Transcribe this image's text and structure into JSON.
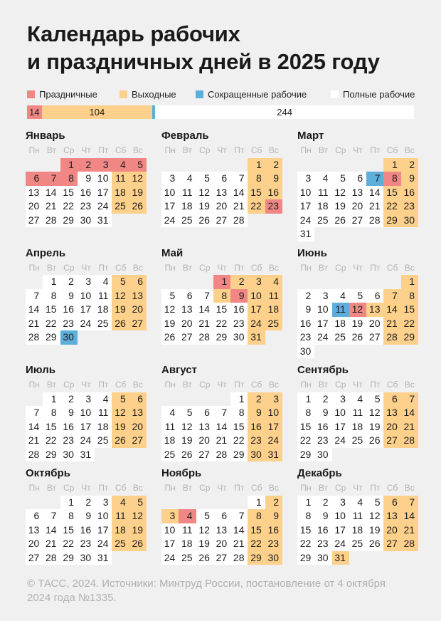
{
  "title": {
    "line1": "Календарь рабочих",
    "line2": "и праздничных дней в 2025 году"
  },
  "colors": {
    "holiday": "#f08785",
    "weekend": "#fdd08b",
    "short": "#5caedb",
    "work": "#ffffff",
    "background": "#f0f0f0"
  },
  "legend": [
    {
      "key": "holiday",
      "label": "Праздничные"
    },
    {
      "key": "weekend",
      "label": "Выходные"
    },
    {
      "key": "short",
      "label": "Сокращенные рабочие"
    },
    {
      "key": "work",
      "label": "Полные рабочие"
    }
  ],
  "totals": [
    {
      "key": "holiday",
      "value": 14
    },
    {
      "key": "weekend",
      "value": 104
    },
    {
      "key": "short",
      "value": 3
    },
    {
      "key": "work",
      "value": 244
    }
  ],
  "weekdays": [
    "Пн",
    "Вт",
    "Ср",
    "Чт",
    "Пт",
    "Сб",
    "Вс"
  ],
  "months": [
    {
      "name": "Январь",
      "first_weekday": "Ср",
      "days": 31,
      "holidays": [
        1,
        2,
        3,
        4,
        5,
        6,
        7,
        8
      ],
      "short": [],
      "extra_weekends": [],
      "working_weekends": []
    },
    {
      "name": "Февраль",
      "first_weekday": "Сб",
      "days": 28,
      "holidays": [
        23
      ],
      "short": [],
      "extra_weekends": [],
      "working_weekends": []
    },
    {
      "name": "Март",
      "first_weekday": "Сб",
      "days": 31,
      "holidays": [
        8
      ],
      "short": [
        7
      ],
      "extra_weekends": [],
      "working_weekends": []
    },
    {
      "name": "Апрель",
      "first_weekday": "Вт",
      "days": 30,
      "holidays": [],
      "short": [
        30
      ],
      "extra_weekends": [],
      "working_weekends": []
    },
    {
      "name": "Май",
      "first_weekday": "Чт",
      "days": 31,
      "holidays": [
        1,
        9
      ],
      "short": [],
      "extra_weekends": [
        2,
        8
      ],
      "working_weekends": []
    },
    {
      "name": "Июнь",
      "first_weekday": "Вс",
      "days": 30,
      "holidays": [
        12
      ],
      "short": [
        11
      ],
      "extra_weekends": [
        13
      ],
      "working_weekends": []
    },
    {
      "name": "Июль",
      "first_weekday": "Вт",
      "days": 31,
      "holidays": [],
      "short": [],
      "extra_weekends": [],
      "working_weekends": []
    },
    {
      "name": "Август",
      "first_weekday": "Пт",
      "days": 31,
      "holidays": [],
      "short": [],
      "extra_weekends": [],
      "working_weekends": []
    },
    {
      "name": "Сентябрь",
      "first_weekday": "Пн",
      "days": 30,
      "holidays": [],
      "short": [],
      "extra_weekends": [],
      "working_weekends": []
    },
    {
      "name": "Октябрь",
      "first_weekday": "Ср",
      "days": 31,
      "holidays": [],
      "short": [],
      "extra_weekends": [],
      "working_weekends": []
    },
    {
      "name": "Ноябрь",
      "first_weekday": "Сб",
      "days": 30,
      "holidays": [
        4
      ],
      "short": [],
      "extra_weekends": [
        3
      ],
      "working_weekends": [
        1
      ]
    },
    {
      "name": "Декабрь",
      "first_weekday": "Пн",
      "days": 31,
      "holidays": [],
      "short": [],
      "extra_weekends": [
        31
      ],
      "working_weekends": []
    }
  ],
  "footer": "© ТАСС, 2024. Источники: Минтруд России, постановление от 4 октября 2024 года №1335."
}
